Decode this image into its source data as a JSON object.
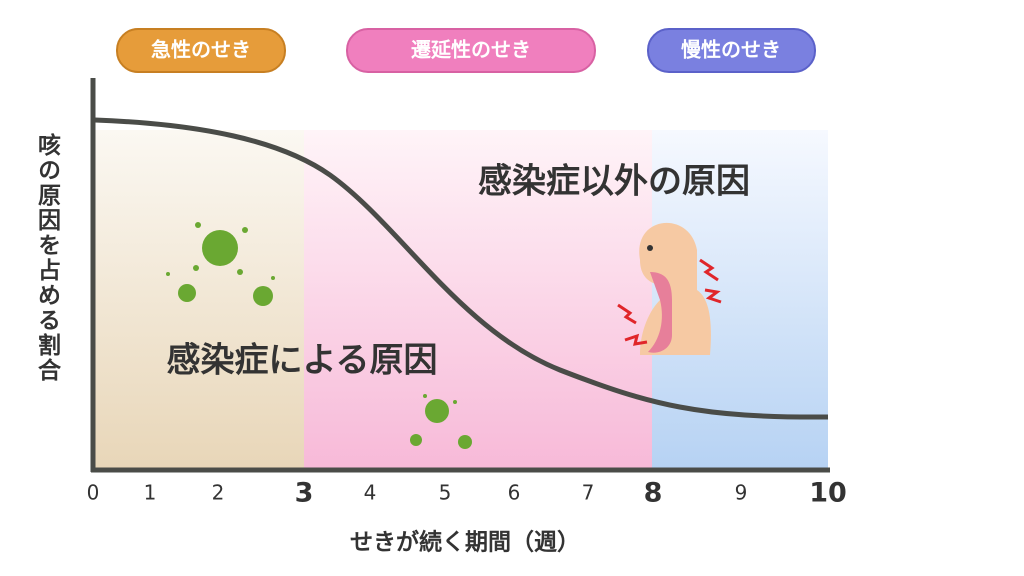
{
  "periods": [
    "急性のせき",
    "遷延性のせき",
    "慢性のせき"
  ],
  "region_labels": [
    "感染症以外の原因",
    "感染症による原因"
  ],
  "y_label": "咳の原因を占める割合",
  "x_label": "せきが続く期間（週）",
  "x_ticks": [
    0,
    1,
    2,
    3,
    4,
    5,
    6,
    7,
    8,
    9,
    10
  ],
  "emphasized_ticks": [
    3,
    8,
    10
  ]
}
